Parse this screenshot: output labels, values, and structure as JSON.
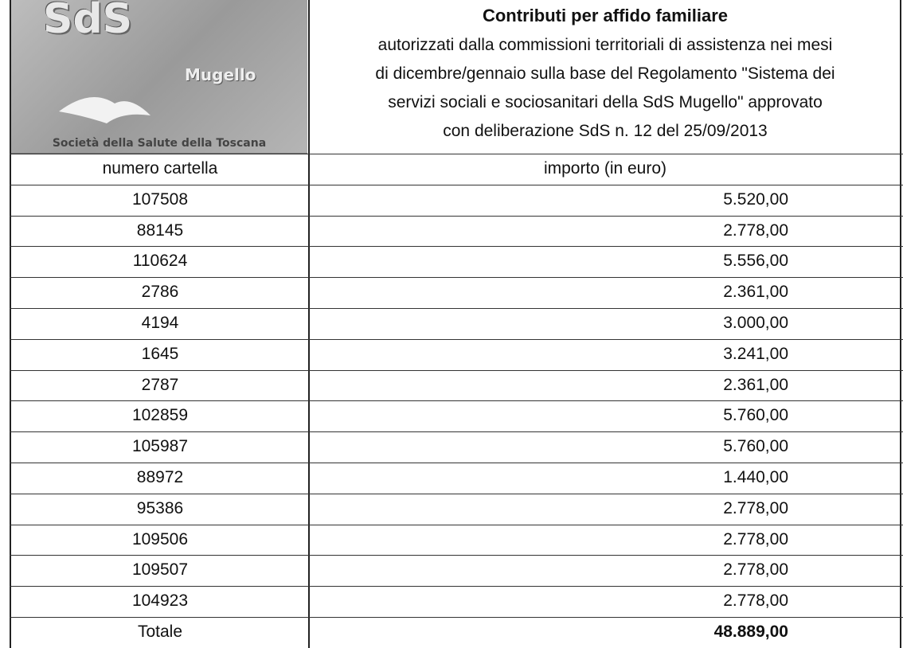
{
  "header": {
    "logo": {
      "title": "SdS",
      "subtitle": "Mugello",
      "caption": "Società della Salute della Toscana"
    },
    "title": "Contributi per affido familiare",
    "lines": [
      "autorizzati dalla commissioni territoriali di assistenza nei mesi",
      "di dicembre/gennaio sulla base del Regolamento \"Sistema dei",
      "servizi sociali e sociosanitari della SdS Mugello\" approvato",
      "con deliberazione SdS n. 12 del  25/09/2013"
    ]
  },
  "table": {
    "columns": [
      "numero cartella",
      "importo (in euro)"
    ],
    "rows": [
      [
        "107508",
        "5.520,00"
      ],
      [
        "88145",
        "2.778,00"
      ],
      [
        "110624",
        "5.556,00"
      ],
      [
        "2786",
        "2.361,00"
      ],
      [
        "4194",
        "3.000,00"
      ],
      [
        "1645",
        "3.241,00"
      ],
      [
        "2787",
        "2.361,00"
      ],
      [
        "102859",
        "5.760,00"
      ],
      [
        "105987",
        "5.760,00"
      ],
      [
        "88972",
        "1.440,00"
      ],
      [
        "95386",
        "2.778,00"
      ],
      [
        "109506",
        "2.778,00"
      ],
      [
        "109507",
        "2.778,00"
      ],
      [
        "104923",
        "2.778,00"
      ]
    ],
    "total": [
      "Totale",
      "48.889,00"
    ]
  }
}
